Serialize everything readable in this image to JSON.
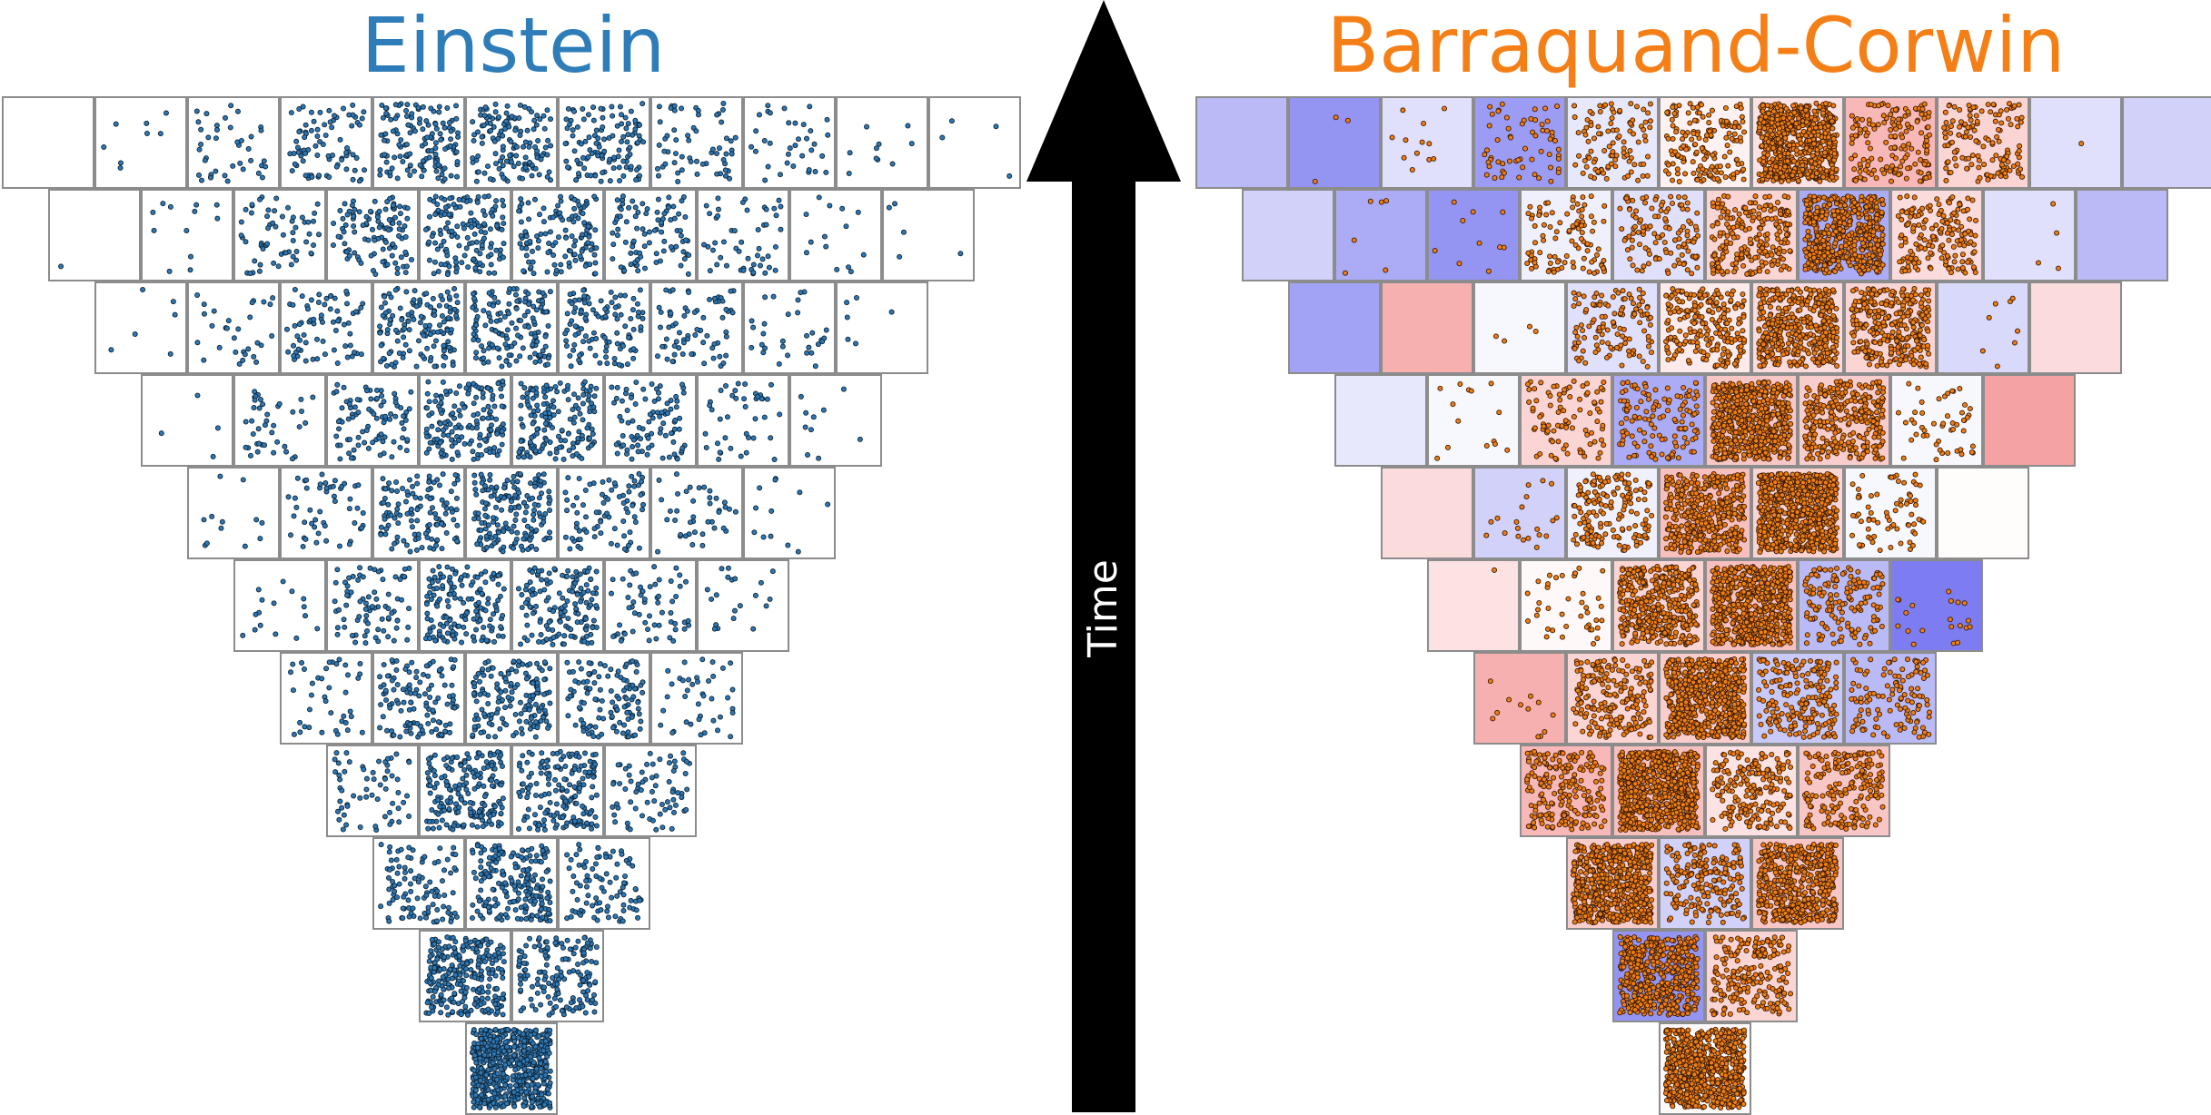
{
  "left_panel": {
    "title": "Einstein",
    "title_color": "#2e7cb8",
    "dot_fill": "#2f78b4",
    "dot_stroke": "#0d2436",
    "rows": [
      [
        0,
        8,
        40,
        80,
        140,
        140,
        120,
        60,
        35,
        10,
        4
      ],
      [
        1,
        12,
        60,
        110,
        150,
        130,
        90,
        50,
        14,
        5
      ],
      [
        6,
        30,
        70,
        140,
        150,
        110,
        70,
        30,
        6
      ],
      [
        4,
        40,
        90,
        160,
        160,
        90,
        40,
        10
      ],
      [
        12,
        50,
        120,
        170,
        80,
        40,
        12
      ],
      [
        16,
        80,
        160,
        150,
        60,
        20
      ],
      [
        40,
        120,
        160,
        120,
        40
      ],
      [
        60,
        190,
        170,
        70
      ],
      [
        100,
        200,
        90
      ],
      [
        280,
        160
      ],
      [
        600
      ]
    ],
    "background_tints": []
  },
  "right_panel": {
    "title": "Barraquand-Corwin",
    "title_color": "#f57f17",
    "dot_fill": "#f07f13",
    "dot_stroke": "#3a1a04",
    "rows": [
      [
        0,
        3,
        12,
        60,
        100,
        160,
        600,
        160,
        140,
        1,
        0
      ],
      [
        0,
        6,
        10,
        100,
        120,
        220,
        500,
        170,
        4,
        0
      ],
      [
        0,
        0,
        4,
        120,
        220,
        400,
        300,
        8,
        0
      ],
      [
        0,
        14,
        90,
        130,
        600,
        300,
        50,
        0
      ],
      [
        0,
        20,
        160,
        400,
        700,
        70,
        0
      ],
      [
        1,
        40,
        400,
        600,
        150,
        20
      ],
      [
        12,
        200,
        600,
        200,
        120
      ],
      [
        200,
        700,
        200,
        200
      ],
      [
        600,
        200,
        500
      ],
      [
        500,
        200
      ],
      [
        700
      ]
    ],
    "background_tints": [
      [
        -0.45,
        -0.7,
        -0.2,
        -0.65,
        -0.15,
        0.1,
        0.2,
        0.5,
        0.3,
        -0.2,
        -0.3
      ],
      [
        -0.3,
        -0.55,
        -0.7,
        -0.1,
        -0.2,
        0.3,
        -0.55,
        0.25,
        -0.2,
        -0.45
      ],
      [
        -0.6,
        0.55,
        -0.05,
        -0.2,
        0.15,
        0.25,
        0.3,
        -0.25,
        0.25
      ],
      [
        -0.15,
        -0.05,
        0.3,
        -0.55,
        0.4,
        0.35,
        -0.05,
        0.65
      ],
      [
        0.25,
        -0.3,
        -0.1,
        0.45,
        0.3,
        -0.05,
        0.02
      ],
      [
        0.2,
        0.05,
        0.3,
        0.45,
        -0.45,
        -0.85
      ],
      [
        0.55,
        0.3,
        0.35,
        -0.35,
        -0.45
      ],
      [
        0.5,
        0.45,
        0.2,
        0.4
      ],
      [
        0.35,
        -0.3,
        0.4
      ],
      [
        -0.7,
        0.3
      ],
      [
        0.05
      ]
    ],
    "tint_positive": "#f07070",
    "tint_negative": "#6666ee"
  },
  "axis": {
    "label": "Time",
    "direction": "up"
  }
}
